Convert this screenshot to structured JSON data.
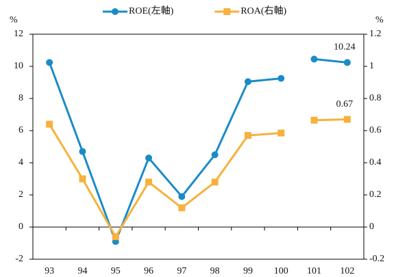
{
  "chart_data": {
    "type": "line",
    "categories": [
      "93",
      "94",
      "95",
      "96",
      "97",
      "98",
      "99",
      "100",
      "101",
      "102"
    ],
    "gap_after": 7,
    "series": [
      {
        "name": "ROE(左軸)",
        "color": "#1b8bc8",
        "marker": "circle",
        "labeled": [
          9
        ],
        "values": [
          10.24,
          4.7,
          -0.9,
          4.3,
          1.9,
          4.5,
          9.05,
          9.25,
          10.45,
          10.24
        ]
      },
      {
        "name": "ROA(右軸)",
        "color": "#f7b13c",
        "marker": "square",
        "axis": "y2",
        "labeled": [
          9
        ],
        "values": [
          0.64,
          0.3,
          -0.06,
          0.28,
          0.12,
          0.28,
          0.57,
          0.585,
          0.665,
          0.67
        ]
      }
    ],
    "ylabel": "%",
    "y2label": "%",
    "ylim": [
      -2,
      12
    ],
    "yticks": [
      -2,
      0,
      2,
      4,
      6,
      8,
      10,
      12
    ],
    "y2lim": [
      -0.2,
      1.2
    ],
    "y2ticks": [
      -0.2,
      0,
      0.2,
      0.4,
      0.6,
      0.8,
      1,
      1.2
    ],
    "grid": false,
    "legend": "upper center"
  }
}
